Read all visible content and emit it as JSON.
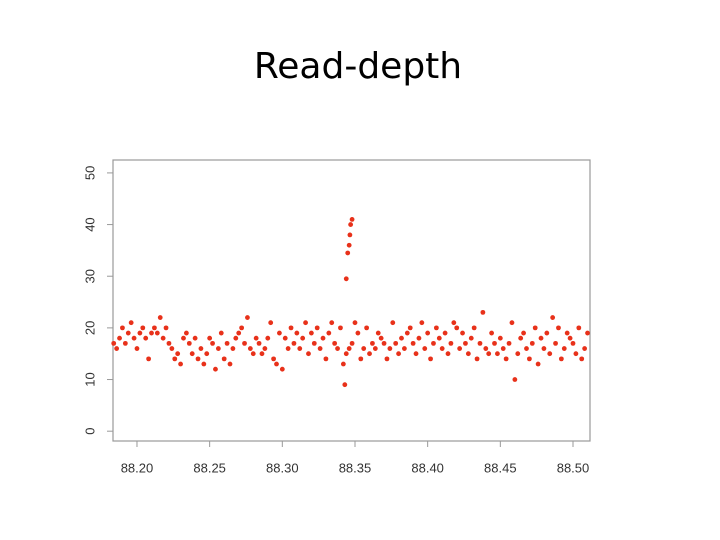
{
  "chart_data": {
    "type": "scatter",
    "title": "Read-depth",
    "color": "#e8311a",
    "xlim": [
      88.1835,
      88.5117
    ],
    "ylim": [
      -1.9,
      52.5
    ],
    "xticks": [
      {
        "value": 88.2,
        "label": "88.20"
      },
      {
        "value": 88.25,
        "label": "88.25"
      },
      {
        "value": 88.3,
        "label": "88.30"
      },
      {
        "value": 88.35,
        "label": "88.35"
      },
      {
        "value": 88.4,
        "label": "88.40"
      },
      {
        "value": 88.45,
        "label": "88.45"
      },
      {
        "value": 88.5,
        "label": "88.50"
      }
    ],
    "yticks": [
      0,
      10,
      20,
      30,
      40,
      50
    ],
    "x": [
      88.184,
      88.186,
      88.188,
      88.19,
      88.192,
      88.194,
      88.196,
      88.198,
      88.2,
      88.202,
      88.204,
      88.206,
      88.208,
      88.21,
      88.212,
      88.214,
      88.216,
      88.218,
      88.22,
      88.222,
      88.224,
      88.226,
      88.228,
      88.23,
      88.232,
      88.234,
      88.236,
      88.238,
      88.24,
      88.242,
      88.244,
      88.246,
      88.248,
      88.25,
      88.252,
      88.254,
      88.256,
      88.258,
      88.26,
      88.262,
      88.264,
      88.266,
      88.268,
      88.27,
      88.272,
      88.274,
      88.276,
      88.278,
      88.28,
      88.282,
      88.284,
      88.286,
      88.288,
      88.29,
      88.292,
      88.294,
      88.296,
      88.298,
      88.3,
      88.302,
      88.304,
      88.306,
      88.308,
      88.31,
      88.312,
      88.314,
      88.316,
      88.318,
      88.32,
      88.322,
      88.324,
      88.326,
      88.328,
      88.33,
      88.332,
      88.334,
      88.336,
      88.338,
      88.34,
      88.342,
      88.344,
      88.346,
      88.348,
      88.35,
      88.352,
      88.354,
      88.356,
      88.358,
      88.36,
      88.362,
      88.364,
      88.366,
      88.368,
      88.37,
      88.372,
      88.374,
      88.376,
      88.378,
      88.38,
      88.382,
      88.384,
      88.386,
      88.388,
      88.39,
      88.392,
      88.394,
      88.396,
      88.398,
      88.4,
      88.402,
      88.404,
      88.406,
      88.408,
      88.41,
      88.412,
      88.414,
      88.416,
      88.418,
      88.42,
      88.422,
      88.424,
      88.426,
      88.428,
      88.43,
      88.432,
      88.434,
      88.436,
      88.438,
      88.44,
      88.442,
      88.444,
      88.446,
      88.448,
      88.45,
      88.452,
      88.454,
      88.456,
      88.458,
      88.46,
      88.462,
      88.464,
      88.466,
      88.468,
      88.47,
      88.472,
      88.474,
      88.476,
      88.478,
      88.48,
      88.482,
      88.484,
      88.486,
      88.488,
      88.49,
      88.492,
      88.494,
      88.496,
      88.498,
      88.5,
      88.502,
      88.504,
      88.506,
      88.508,
      88.51,
      88.343,
      88.344,
      88.345,
      88.346,
      88.3465,
      88.347,
      88.348
    ],
    "values": [
      17,
      16,
      18,
      20,
      17,
      19,
      21,
      18,
      16,
      19,
      20,
      18,
      14,
      19,
      20,
      19,
      22,
      18,
      20,
      17,
      16,
      14,
      15,
      13,
      18,
      19,
      17,
      15,
      18,
      14,
      16,
      13,
      15,
      18,
      17,
      12,
      16,
      19,
      14,
      17,
      13,
      16,
      18,
      19,
      20,
      17,
      22,
      16,
      15,
      18,
      17,
      15,
      16,
      18,
      21,
      14,
      13,
      19,
      12,
      18,
      16,
      20,
      17,
      19,
      16,
      18,
      21,
      15,
      19,
      17,
      20,
      16,
      18,
      14,
      19,
      21,
      17,
      16,
      20,
      13,
      15,
      16,
      17,
      21,
      19,
      14,
      16,
      20,
      15,
      17,
      16,
      19,
      18,
      17,
      14,
      16,
      21,
      17,
      15,
      18,
      16,
      19,
      20,
      17,
      15,
      18,
      21,
      16,
      19,
      14,
      17,
      20,
      18,
      16,
      19,
      15,
      17,
      21,
      20,
      16,
      19,
      17,
      15,
      18,
      20,
      14,
      17,
      23,
      16,
      15,
      19,
      17,
      15,
      18,
      16,
      14,
      17,
      21,
      10,
      15,
      18,
      19,
      16,
      14,
      17,
      20,
      13,
      18,
      16,
      19,
      15,
      22,
      17,
      20,
      14,
      16,
      19,
      18,
      17,
      15,
      20,
      14,
      16,
      19,
      9,
      29.5,
      34.5,
      36,
      38,
      40,
      41
    ]
  }
}
